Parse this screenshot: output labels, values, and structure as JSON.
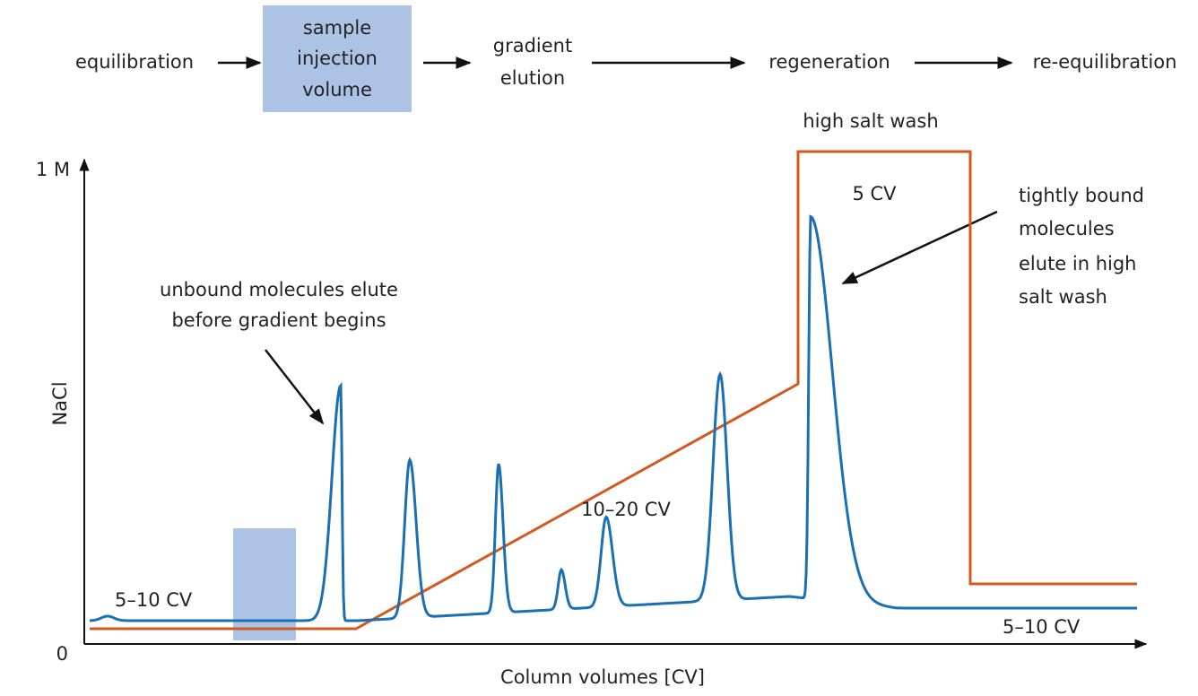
{
  "flow": {
    "steps": [
      {
        "lines": [
          "equilibration"
        ]
      },
      {
        "lines": [
          "sample",
          "injection",
          "volume"
        ]
      },
      {
        "lines": [
          "gradient",
          "elution"
        ]
      },
      {
        "lines": [
          "regeneration"
        ]
      },
      {
        "lines": [
          "re-equilibration"
        ]
      }
    ]
  },
  "axes": {
    "y_top": "1 M",
    "y_bottom": "0",
    "y_label": "NaCl",
    "x_label": "Column volumes [CV]"
  },
  "annotations": {
    "high_salt": "high salt wash",
    "high_salt_cv": "5 CV",
    "tightly_bound": {
      "lines": [
        "tightly bound",
        "molecules",
        "elute in high",
        "salt wash"
      ]
    },
    "unbound": {
      "lines": [
        "unbound molecules elute",
        "before gradient begins"
      ]
    },
    "gradient_cv": "10–20 CV",
    "equil_cv": "5–10 CV",
    "reequil_cv": "5–10 CV"
  }
}
